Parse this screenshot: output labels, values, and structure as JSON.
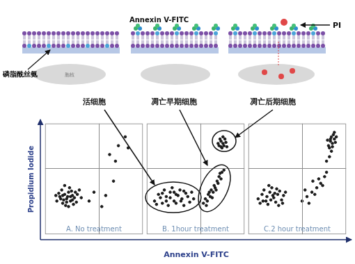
{
  "diagram": {
    "annexin_label": "Annexin V-FITC",
    "pi_label": "PI",
    "ps_label": "磷脂酰丝氨",
    "nucleus_label": "胞核",
    "stages": [
      "活细胞",
      "凋亡早期细胞",
      "凋亡后期细胞"
    ]
  },
  "chart_data": {
    "type": "scatter",
    "x_label": "Annexin V-FITC",
    "y_label": "Propidium Iodide",
    "xlim": [
      0,
      100
    ],
    "ylim": [
      0,
      100
    ],
    "tick_labels": false,
    "gates": {
      "x": 55,
      "y": 60
    },
    "color": "#1a1a1a",
    "panels": [
      {
        "title": "A. No treatment",
        "points": [
          [
            12,
            30
          ],
          [
            15,
            34
          ],
          [
            18,
            28
          ],
          [
            20,
            36
          ],
          [
            22,
            32
          ],
          [
            24,
            38
          ],
          [
            26,
            30
          ],
          [
            28,
            35
          ],
          [
            30,
            33
          ],
          [
            17,
            40
          ],
          [
            21,
            26
          ],
          [
            25,
            42
          ],
          [
            32,
            29
          ],
          [
            14,
            37
          ],
          [
            19,
            31
          ],
          [
            23,
            34
          ],
          [
            27,
            39
          ],
          [
            29,
            27
          ],
          [
            33,
            36
          ],
          [
            16,
            32
          ],
          [
            20,
            44
          ],
          [
            24,
            25
          ],
          [
            35,
            40
          ],
          [
            11,
            35
          ],
          [
            26,
            34
          ],
          [
            22,
            29
          ],
          [
            31,
            38
          ],
          [
            18,
            35
          ],
          [
            28,
            31
          ],
          [
            37,
            33
          ],
          [
            45,
            30
          ],
          [
            50,
            38
          ],
          [
            62,
            35
          ],
          [
            70,
            48
          ],
          [
            66,
            72
          ],
          [
            75,
            80
          ],
          [
            82,
            88
          ],
          [
            72,
            66
          ],
          [
            85,
            78
          ],
          [
            58,
            25
          ]
        ]
      },
      {
        "title": "B. 1hour treatment",
        "points": [
          [
            8,
            30
          ],
          [
            12,
            36
          ],
          [
            16,
            28
          ],
          [
            20,
            34
          ],
          [
            24,
            38
          ],
          [
            28,
            30
          ],
          [
            32,
            35
          ],
          [
            36,
            32
          ],
          [
            40,
            37
          ],
          [
            44,
            29
          ],
          [
            18,
            40
          ],
          [
            22,
            26
          ],
          [
            26,
            42
          ],
          [
            30,
            28
          ],
          [
            34,
            40
          ],
          [
            38,
            26
          ],
          [
            42,
            34
          ],
          [
            14,
            33
          ],
          [
            46,
            38
          ],
          [
            10,
            27
          ],
          [
            24,
            33
          ],
          [
            30,
            36
          ],
          [
            35,
            30
          ],
          [
            20,
            30
          ],
          [
            28,
            38
          ],
          [
            48,
            32
          ],
          [
            16,
            37
          ],
          [
            38,
            39
          ],
          [
            58,
            28
          ],
          [
            60,
            32
          ],
          [
            62,
            30
          ],
          [
            63,
            36
          ],
          [
            65,
            34
          ],
          [
            66,
            40
          ],
          [
            68,
            38
          ],
          [
            69,
            44
          ],
          [
            70,
            42
          ],
          [
            72,
            48
          ],
          [
            73,
            46
          ],
          [
            74,
            52
          ],
          [
            76,
            50
          ],
          [
            77,
            56
          ],
          [
            64,
            38
          ],
          [
            71,
            40
          ],
          [
            75,
            55
          ],
          [
            67,
            33
          ],
          [
            79,
            58
          ],
          [
            61,
            26
          ],
          [
            74,
            80
          ],
          [
            76,
            84
          ],
          [
            78,
            82
          ],
          [
            80,
            86
          ],
          [
            77,
            78
          ],
          [
            79,
            80
          ],
          [
            81,
            83
          ],
          [
            75,
            86
          ],
          [
            73,
            82
          ],
          [
            82,
            79
          ],
          [
            78,
            88
          ],
          [
            76,
            79
          ]
        ]
      },
      {
        "title": "C.2 hour treatment",
        "points": [
          [
            10,
            32
          ],
          [
            14,
            36
          ],
          [
            18,
            30
          ],
          [
            22,
            38
          ],
          [
            26,
            33
          ],
          [
            30,
            36
          ],
          [
            34,
            31
          ],
          [
            16,
            40
          ],
          [
            20,
            27
          ],
          [
            24,
            42
          ],
          [
            28,
            29
          ],
          [
            32,
            39
          ],
          [
            12,
            28
          ],
          [
            36,
            35
          ],
          [
            19,
            34
          ],
          [
            23,
            31
          ],
          [
            27,
            37
          ],
          [
            31,
            26
          ],
          [
            15,
            30
          ],
          [
            25,
            35
          ],
          [
            29,
            41
          ],
          [
            21,
            44
          ],
          [
            35,
            28
          ],
          [
            38,
            38
          ],
          [
            55,
            30
          ],
          [
            60,
            34
          ],
          [
            65,
            38
          ],
          [
            70,
            42
          ],
          [
            74,
            46
          ],
          [
            78,
            52
          ],
          [
            62,
            28
          ],
          [
            68,
            36
          ],
          [
            72,
            50
          ],
          [
            80,
            56
          ],
          [
            58,
            40
          ],
          [
            76,
            44
          ],
          [
            66,
            48
          ],
          [
            82,
            80
          ],
          [
            84,
            84
          ],
          [
            86,
            82
          ],
          [
            88,
            86
          ],
          [
            85,
            88
          ],
          [
            83,
            78
          ],
          [
            87,
            90
          ],
          [
            89,
            83
          ],
          [
            84,
            86
          ],
          [
            86,
            79
          ],
          [
            90,
            88
          ],
          [
            81,
            85
          ],
          [
            85,
            75
          ],
          [
            88,
            92
          ],
          [
            83,
            70
          ],
          [
            80,
            66
          ]
        ]
      }
    ]
  }
}
